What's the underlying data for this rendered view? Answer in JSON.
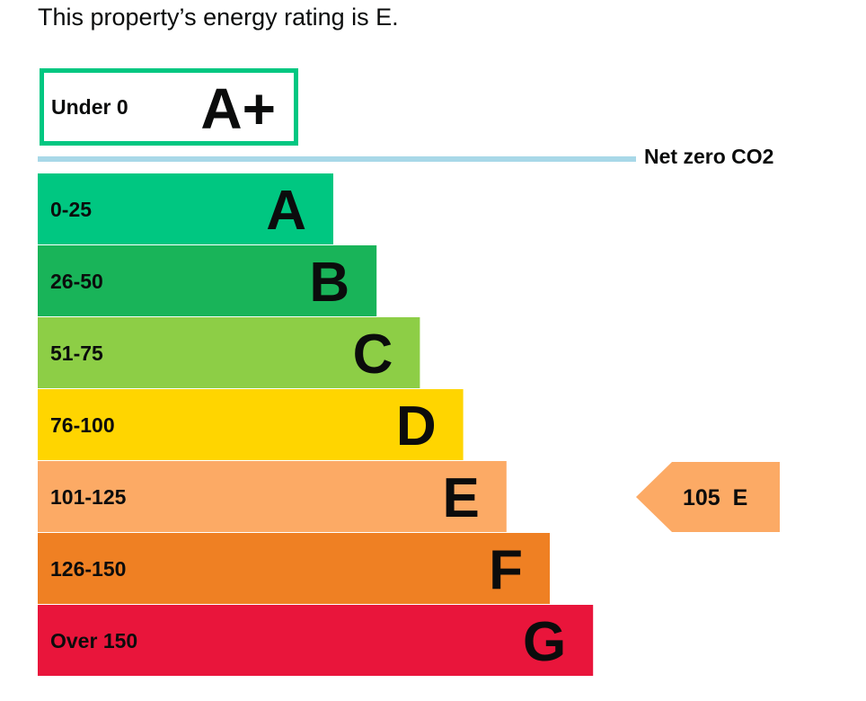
{
  "heading": "This property’s energy rating is E.",
  "chart_data": {
    "type": "bar",
    "title": "",
    "top_band": {
      "range": "Under 0",
      "letter": "A+",
      "color": "#00c781",
      "style": "outlined"
    },
    "net_zero_label": "Net zero CO2",
    "net_zero_color": "#a8d8e8",
    "categories": [
      "A",
      "B",
      "C",
      "D",
      "E",
      "F",
      "G"
    ],
    "bands": [
      {
        "letter": "A",
        "range": "0-25",
        "color": "#00c781"
      },
      {
        "letter": "B",
        "range": "26-50",
        "color": "#19b459"
      },
      {
        "letter": "C",
        "range": "51-75",
        "color": "#8dce46"
      },
      {
        "letter": "D",
        "range": "76-100",
        "color": "#ffd500"
      },
      {
        "letter": "E",
        "range": "101-125",
        "color": "#fcaa65"
      },
      {
        "letter": "F",
        "range": "126-150",
        "color": "#ef8023"
      },
      {
        "letter": "G",
        "range": "Over 150",
        "color": "#e9153b"
      }
    ],
    "current_rating": {
      "score": 105,
      "letter": "E",
      "label": "105  E",
      "color": "#fcaa65"
    }
  }
}
